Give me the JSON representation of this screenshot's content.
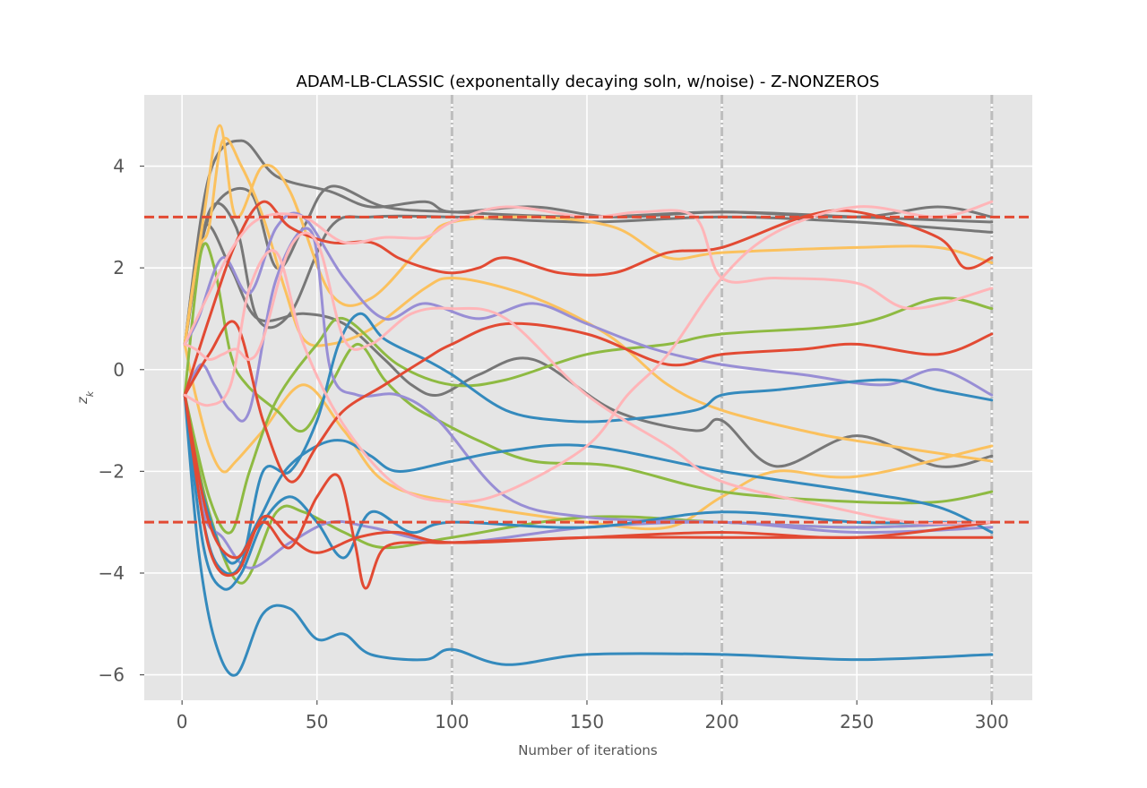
{
  "chart_data": {
    "type": "line",
    "title": "ADAM-LB-CLASSIC (exponentally decaying soln, w/noise) - Z-NONZEROS",
    "xlabel": "Number of iterations",
    "ylabel": "z_k",
    "xlim": [
      -14,
      315
    ],
    "ylim": [
      -6.5,
      5.4
    ],
    "xticks": [
      0,
      50,
      100,
      150,
      200,
      250,
      300
    ],
    "yticks": [
      -6,
      -4,
      -2,
      0,
      2,
      4
    ],
    "xtick_labels": [
      "0",
      "50",
      "100",
      "150",
      "200",
      "250",
      "300"
    ],
    "ytick_labels": [
      "−6",
      "−4",
      "−2",
      "0",
      "2",
      "4"
    ],
    "grid": true,
    "reference_lines": {
      "horizontal": [
        3,
        -3
      ],
      "horizontal_color": "#e24a33",
      "vertical": [
        100,
        200,
        300
      ],
      "vertical_color": "#bdbdbd"
    },
    "colors": {
      "background": "#e5e5e5",
      "red": "#e24a33",
      "blue": "#348abd",
      "purple": "#988ed5",
      "gray": "#777777",
      "yellow": "#fbc15e",
      "green": "#8eba42",
      "pink": "#ffb5b8"
    },
    "series": [
      {
        "color": "#777777",
        "x": [
          1,
          10,
          22,
          35,
          55,
          70,
          90,
          100,
          130,
          160,
          200,
          250,
          280,
          300
        ],
        "y": [
          0.5,
          3.8,
          4.5,
          3.8,
          3.5,
          3.2,
          3.3,
          3.1,
          3.2,
          3.0,
          3.1,
          3.0,
          3.2,
          3.0
        ]
      },
      {
        "color": "#777777",
        "x": [
          1,
          10,
          25,
          35,
          45,
          55,
          75,
          100,
          150,
          200,
          250,
          300
        ],
        "y": [
          0.5,
          3.0,
          3.5,
          2.0,
          2.8,
          3.6,
          3.2,
          3.1,
          3.0,
          3.1,
          3.0,
          2.9
        ]
      },
      {
        "color": "#777777",
        "x": [
          1,
          10,
          20,
          28,
          40,
          55,
          70,
          100,
          150,
          200,
          250,
          300
        ],
        "y": [
          0.5,
          3.1,
          2.8,
          1.0,
          1.1,
          2.8,
          3.0,
          3.0,
          2.9,
          3.0,
          2.9,
          2.7
        ]
      },
      {
        "color": "#777777",
        "x": [
          1,
          8,
          18,
          28,
          45,
          60,
          75,
          85,
          95,
          110,
          130,
          160,
          190,
          200,
          220,
          250,
          280,
          300
        ],
        "y": [
          0.5,
          2.8,
          2.0,
          1.0,
          1.1,
          0.9,
          0.2,
          -0.3,
          -0.5,
          -0.1,
          0.2,
          -0.8,
          -1.2,
          -1.0,
          -1.9,
          -1.3,
          -1.9,
          -1.7
        ]
      },
      {
        "color": "#fbc15e",
        "x": [
          1,
          8,
          14,
          20,
          30,
          40,
          55,
          70,
          90,
          100,
          130,
          160,
          180,
          200,
          250,
          280,
          300
        ],
        "y": [
          0.5,
          3.0,
          4.8,
          3.0,
          4.0,
          3.5,
          1.5,
          1.4,
          2.5,
          2.9,
          3.0,
          2.8,
          2.2,
          2.3,
          2.4,
          2.4,
          2.1
        ]
      },
      {
        "color": "#fbc15e",
        "x": [
          1,
          6,
          10,
          15,
          22,
          30,
          38,
          45,
          55,
          70,
          90,
          100,
          120,
          140,
          160,
          180,
          200,
          230,
          250,
          300
        ],
        "y": [
          0.5,
          2.3,
          2.8,
          4.5,
          4.0,
          3.0,
          1.6,
          0.6,
          0.5,
          0.8,
          1.6,
          1.8,
          1.6,
          1.2,
          0.6,
          -0.3,
          -0.8,
          -1.2,
          -1.4,
          -1.8
        ]
      },
      {
        "color": "#fbc15e",
        "x": [
          1,
          5,
          10,
          15,
          20,
          30,
          45,
          60,
          75,
          100,
          150,
          180,
          200,
          220,
          250,
          300
        ],
        "y": [
          0.5,
          -0.5,
          -1.5,
          -2.0,
          -1.8,
          -1.2,
          -0.3,
          -1.2,
          -2.2,
          -2.6,
          -3.0,
          -3.1,
          -2.5,
          -2.0,
          -2.1,
          -1.5
        ]
      },
      {
        "color": "#8eba42",
        "x": [
          1,
          7,
          12,
          18,
          24,
          35,
          45,
          55,
          65,
          75,
          85,
          95,
          110,
          130,
          160,
          200,
          250,
          280,
          300
        ],
        "y": [
          -0.5,
          2.3,
          2.0,
          0.3,
          -0.3,
          -0.8,
          -1.2,
          -0.3,
          0.5,
          -0.2,
          -0.7,
          -1.0,
          -1.4,
          -1.8,
          -1.9,
          -2.4,
          -2.6,
          -2.6,
          -2.4
        ]
      },
      {
        "color": "#8eba42",
        "x": [
          1,
          10,
          18,
          25,
          35,
          50,
          60,
          80,
          100,
          120,
          150,
          180,
          200,
          250,
          280,
          300
        ],
        "y": [
          -0.5,
          -2.5,
          -3.2,
          -2.0,
          -0.6,
          0.5,
          1.0,
          0.1,
          -0.3,
          -0.2,
          0.3,
          0.5,
          0.7,
          0.9,
          1.4,
          1.2
        ]
      },
      {
        "color": "#8eba42",
        "x": [
          1,
          10,
          22,
          35,
          45,
          60,
          75,
          100,
          150,
          200,
          250,
          300
        ],
        "y": [
          -0.5,
          -2.8,
          -4.2,
          -2.8,
          -2.8,
          -3.2,
          -3.5,
          -3.3,
          -2.9,
          -3.0,
          -3.1,
          -3.0
        ]
      },
      {
        "color": "#988ed5",
        "x": [
          1,
          6,
          15,
          25,
          35,
          45,
          60,
          75,
          90,
          110,
          130,
          150,
          175,
          200,
          230,
          260,
          280,
          300
        ],
        "y": [
          0.5,
          1.0,
          2.2,
          1.5,
          2.8,
          3.0,
          1.8,
          1.0,
          1.3,
          1.0,
          1.3,
          0.9,
          0.4,
          0.1,
          -0.1,
          -0.3,
          0.0,
          -0.5
        ]
      },
      {
        "color": "#988ed5",
        "x": [
          1,
          7,
          12,
          18,
          25,
          35,
          48,
          55,
          65,
          80,
          95,
          120,
          150,
          200,
          250,
          300
        ],
        "y": [
          -0.5,
          0.1,
          -0.3,
          -0.8,
          -0.8,
          1.8,
          2.7,
          0.0,
          -0.5,
          -0.5,
          -1.0,
          -2.5,
          -2.9,
          -3.0,
          -3.1,
          -3.0
        ]
      },
      {
        "color": "#988ed5",
        "x": [
          1,
          8,
          15,
          25,
          40,
          55,
          70,
          100,
          150,
          200,
          250,
          300
        ],
        "y": [
          -0.5,
          -2.8,
          -3.3,
          -3.9,
          -3.4,
          -3.0,
          -3.1,
          -3.4,
          -3.1,
          -3.0,
          -3.2,
          -3.1
        ]
      },
      {
        "color": "#348abd",
        "x": [
          1,
          8,
          14,
          22,
          30,
          40,
          50,
          58,
          66,
          75,
          90,
          100,
          120,
          140,
          160,
          190,
          200,
          220,
          260,
          280,
          300
        ],
        "y": [
          -0.5,
          -3.0,
          -3.9,
          -3.8,
          -2.0,
          -2.0,
          -1.0,
          0.5,
          1.1,
          0.6,
          0.2,
          -0.1,
          -0.8,
          -1.0,
          -1.0,
          -0.8,
          -0.5,
          -0.4,
          -0.2,
          -0.4,
          -0.6
        ]
      },
      {
        "color": "#348abd",
        "x": [
          1,
          8,
          18,
          28,
          38,
          50,
          60,
          70,
          80,
          100,
          120,
          150,
          200,
          250,
          280,
          300
        ],
        "y": [
          -0.5,
          -2.5,
          -3.8,
          -3.0,
          -2.0,
          -1.5,
          -1.4,
          -1.7,
          -2.0,
          -1.8,
          -1.6,
          -1.5,
          -2.0,
          -2.4,
          -2.7,
          -3.2
        ]
      },
      {
        "color": "#348abd",
        "x": [
          1,
          8,
          15,
          22,
          30,
          40,
          50,
          60,
          70,
          85,
          100,
          150,
          200,
          250,
          280,
          300
        ],
        "y": [
          -0.5,
          -3.5,
          -4.3,
          -4.0,
          -3.0,
          -2.5,
          -3.0,
          -3.7,
          -2.8,
          -3.2,
          -3.0,
          -3.1,
          -2.8,
          -3.0,
          -3.0,
          -3.0
        ]
      },
      {
        "color": "#348abd",
        "x": [
          1,
          6,
          12,
          20,
          30,
          40,
          50,
          60,
          70,
          90,
          100,
          120,
          150,
          200,
          250,
          300
        ],
        "y": [
          -0.5,
          -3.5,
          -5.3,
          -6.0,
          -4.8,
          -4.7,
          -5.3,
          -5.2,
          -5.6,
          -5.7,
          -5.5,
          -5.8,
          -5.6,
          -5.6,
          -5.7,
          -5.6
        ]
      },
      {
        "color": "#e24a33",
        "x": [
          1,
          10,
          20,
          30,
          40,
          55,
          70,
          80,
          90,
          100,
          110,
          120,
          140,
          160,
          180,
          200,
          230,
          250,
          280,
          290,
          300
        ],
        "y": [
          -0.5,
          1.0,
          2.5,
          3.3,
          2.8,
          2.5,
          2.5,
          2.2,
          2.0,
          1.9,
          2.0,
          2.2,
          1.9,
          1.9,
          2.3,
          2.4,
          3.0,
          3.1,
          2.6,
          2.0,
          2.2
        ]
      },
      {
        "color": "#e24a33",
        "x": [
          1,
          10,
          20,
          30,
          40,
          50,
          60,
          75,
          90,
          100,
          120,
          150,
          180,
          200,
          230,
          250,
          280,
          300
        ],
        "y": [
          -0.5,
          0.3,
          0.9,
          -1.0,
          -2.2,
          -1.5,
          -0.8,
          -0.3,
          0.2,
          0.5,
          0.9,
          0.7,
          0.1,
          0.3,
          0.4,
          0.5,
          0.3,
          0.7
        ]
      },
      {
        "color": "#e24a33",
        "x": [
          1,
          10,
          20,
          30,
          40,
          50,
          58,
          64,
          68,
          75,
          90,
          100,
          150,
          200,
          250,
          300
        ],
        "y": [
          -0.5,
          -3.0,
          -3.7,
          -3.0,
          -3.5,
          -2.5,
          -2.1,
          -3.4,
          -4.3,
          -3.5,
          -3.4,
          -3.4,
          -3.3,
          -3.3,
          -3.3,
          -3.3
        ]
      },
      {
        "color": "#e24a33",
        "x": [
          1,
          10,
          20,
          30,
          40,
          50,
          65,
          80,
          100,
          150,
          200,
          250,
          300
        ],
        "y": [
          -0.5,
          -3.5,
          -4.0,
          -2.9,
          -3.3,
          -3.6,
          -3.3,
          -3.2,
          -3.4,
          -3.3,
          -3.2,
          -3.3,
          -3.0
        ]
      },
      {
        "color": "#ffb5b8",
        "x": [
          1,
          5,
          10,
          15,
          20,
          25,
          30,
          40,
          50,
          60,
          70,
          85,
          100,
          120,
          150,
          180,
          200,
          240,
          270,
          300
        ],
        "y": [
          0.5,
          0.4,
          0.2,
          0.3,
          0.4,
          0.2,
          0.6,
          2.4,
          2.5,
          0.6,
          0.5,
          1.1,
          1.2,
          1.0,
          -0.5,
          -1.5,
          -2.2,
          -2.7,
          -3.0,
          -3.0
        ]
      },
      {
        "color": "#ffb5b8",
        "x": [
          1,
          10,
          18,
          25,
          35,
          45,
          60,
          80,
          100,
          120,
          150,
          165,
          180,
          200,
          220,
          250,
          280,
          300
        ],
        "y": [
          -0.5,
          -0.7,
          -0.3,
          1.6,
          2.3,
          0.5,
          -1.1,
          -2.3,
          -2.6,
          -2.4,
          -1.5,
          -0.5,
          0.3,
          1.8,
          2.7,
          3.2,
          3.0,
          3.3
        ]
      },
      {
        "color": "#ffb5b8",
        "x": [
          1,
          10,
          20,
          30,
          45,
          60,
          75,
          90,
          100,
          120,
          150,
          170,
          190,
          200,
          220,
          250,
          270,
          300
        ],
        "y": [
          0.5,
          1.5,
          2.5,
          3.0,
          3.0,
          2.5,
          2.6,
          2.6,
          2.9,
          3.2,
          3.0,
          3.1,
          3.0,
          1.8,
          1.8,
          1.7,
          1.2,
          1.6
        ]
      }
    ]
  }
}
